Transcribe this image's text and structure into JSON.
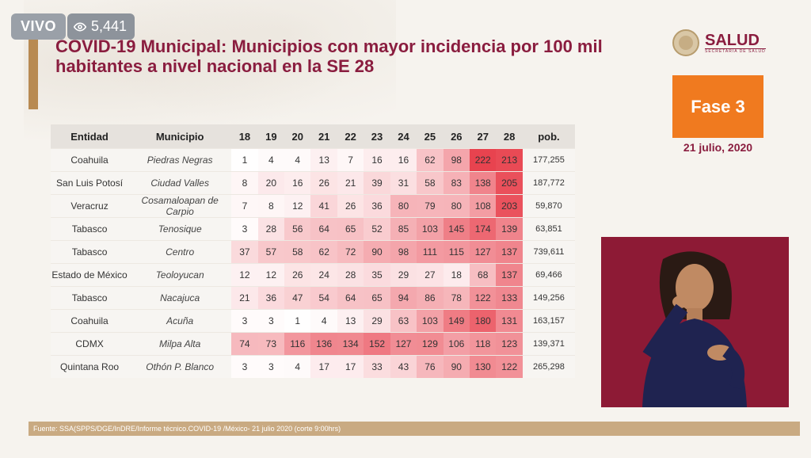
{
  "overlay": {
    "live_label": "VIVO",
    "viewers": "5,441"
  },
  "slide": {
    "title": "COVID-19 Municipal: Municipios con mayor incidencia por 100 mil habitantes a nivel nacional en la SE 28",
    "logo_text": "SALUD",
    "logo_sub": "SECRETARÍA DE SALUD",
    "phase": "Fase 3",
    "date": "21 julio, 2020",
    "source": "Fuente: SSA(SPPS/DGE/InDRE/Informe técnico.COVID-19 /México- 21 julio 2020 (corte 9:00hrs)"
  },
  "colors": {
    "title": "#8a1d3f",
    "phase_bg": "#f07a1f",
    "heat_max": "#e8434f"
  },
  "table": {
    "headers": [
      "Entidad",
      "Municipio",
      "18",
      "19",
      "20",
      "21",
      "22",
      "23",
      "24",
      "25",
      "26",
      "27",
      "28",
      "pob."
    ],
    "rows": [
      {
        "entidad": "Coahuila",
        "municipio": "Piedras Negras",
        "values": [
          1,
          4,
          4,
          13,
          7,
          16,
          16,
          62,
          98,
          222,
          213
        ],
        "pob": "177,255"
      },
      {
        "entidad": "San Luis Potosí",
        "municipio": "Ciudad Valles",
        "values": [
          8,
          20,
          16,
          26,
          21,
          39,
          31,
          58,
          83,
          138,
          205
        ],
        "pob": "187,772"
      },
      {
        "entidad": "Veracruz",
        "municipio": "Cosamaloapan de Carpio",
        "values": [
          7,
          8,
          12,
          41,
          26,
          36,
          80,
          79,
          80,
          108,
          203
        ],
        "pob": "59,870"
      },
      {
        "entidad": "Tabasco",
        "municipio": "Tenosique",
        "values": [
          3,
          28,
          56,
          64,
          65,
          52,
          85,
          103,
          145,
          174,
          139
        ],
        "pob": "63,851"
      },
      {
        "entidad": "Tabasco",
        "municipio": "Centro",
        "values": [
          37,
          57,
          58,
          62,
          72,
          90,
          98,
          111,
          115,
          127,
          137
        ],
        "pob": "739,611"
      },
      {
        "entidad": "Estado de México",
        "municipio": "Teoloyucan",
        "values": [
          12,
          12,
          26,
          24,
          28,
          35,
          29,
          27,
          18,
          68,
          137
        ],
        "pob": "69,466"
      },
      {
        "entidad": "Tabasco",
        "municipio": "Nacajuca",
        "values": [
          21,
          36,
          47,
          54,
          64,
          65,
          94,
          86,
          78,
          122,
          133
        ],
        "pob": "149,256"
      },
      {
        "entidad": "Coahuila",
        "municipio": "Acuña",
        "values": [
          3,
          3,
          1,
          4,
          13,
          29,
          63,
          103,
          149,
          180,
          131
        ],
        "pob": "163,157"
      },
      {
        "entidad": "CDMX",
        "municipio": "Milpa Alta",
        "values": [
          74,
          73,
          116,
          136,
          134,
          152,
          127,
          129,
          106,
          118,
          123
        ],
        "pob": "139,371"
      },
      {
        "entidad": "Quintana Roo",
        "municipio": "Othón P. Blanco",
        "values": [
          3,
          3,
          4,
          17,
          17,
          33,
          43,
          76,
          90,
          130,
          122
        ],
        "pob": "265,298"
      }
    ]
  }
}
